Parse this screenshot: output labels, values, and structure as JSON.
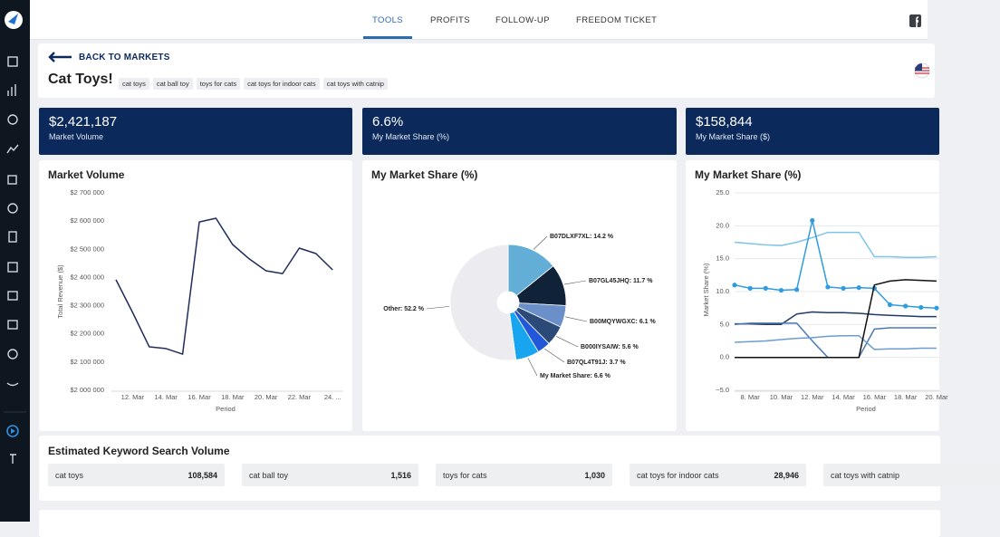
{
  "nav": {
    "tabs": [
      "TOOLS",
      "PROFITS",
      "FOLLOW-UP",
      "FREEDOM TICKET"
    ],
    "active": 0
  },
  "header": {
    "back": "BACK TO MARKETS",
    "title": "Cat Toys!",
    "tags": [
      "cat toys",
      "cat ball toy",
      "toys for cats",
      "cat toys for indoor cats",
      "cat toys with catnip"
    ]
  },
  "kpis": [
    {
      "value": "$2,421,187",
      "label": "Market Volume"
    },
    {
      "value": "6.6%",
      "label": "My Market Share (%)"
    },
    {
      "value": "$158,844",
      "label": "My Market Share ($)"
    }
  ],
  "chart_data": [
    {
      "type": "line",
      "title": "Market Volume",
      "ylabel": "Total Revenue ($)",
      "xlabel": "Period",
      "categories": [
        null,
        "12. Mar",
        null,
        "14. Mar",
        null,
        "16. Mar",
        null,
        "18. Mar",
        null,
        "20. Mar",
        null,
        "22. Mar",
        null,
        "24. ..."
      ],
      "series": [
        {
          "color": "#1f2d5c",
          "values": [
            2392000,
            2276000,
            2154000,
            2148000,
            2128000,
            2597000,
            2610000,
            2517000,
            2466000,
            2424000,
            2414000,
            2504000,
            2485000,
            2427000
          ]
        }
      ],
      "ylim": [
        2000000,
        2700000
      ],
      "yticks": [
        {
          "value": 2000000,
          "label": "$2 000 000"
        },
        {
          "value": 2100000,
          "label": "$2 100 000"
        },
        {
          "value": 2200000,
          "label": "$2 200 000"
        },
        {
          "value": 2300000,
          "label": "$2 300 000"
        },
        {
          "value": 2400000,
          "label": "$2 400 000"
        },
        {
          "value": 2500000,
          "label": "$2 500 000"
        },
        {
          "value": 2600000,
          "label": "$2 600 000"
        },
        {
          "value": 2700000,
          "label": "$2 700 000"
        }
      ],
      "grid": false
    },
    {
      "type": "pie",
      "title": "My Market Share (%)",
      "values": [
        14.2,
        11.7,
        6.1,
        5.6,
        3.7,
        6.6,
        52.2
      ],
      "value_labels": [
        "B07DLXF7XL: 14.2 %",
        "B07GL45JHQ: 11.7 %",
        "B00MQYWGXC: 6.1 %",
        "B000IYSAIW: 5.6 %",
        "B07QL4T91J: 3.7 %",
        "My Market Share: 6.6 %",
        "Other: 52.2 %"
      ],
      "colors": [
        "#63aed6",
        "#0f2238",
        "#6b8fc9",
        "#2c4a78",
        "#2157d8",
        "#16a5ee",
        "#ececf0"
      ]
    },
    {
      "type": "line",
      "title": "My Market Share (%)",
      "ylabel": "Market Share (%)",
      "xlabel": "Period",
      "categories": [
        null,
        "8. Mar",
        null,
        "10. Mar",
        null,
        "12. Mar",
        null,
        "14. Mar",
        null,
        "16. Mar",
        null,
        "18. Mar",
        null,
        "20. Mar"
      ],
      "series": [
        {
          "color": "#7ec3e8",
          "values": [
            17.5,
            17.3,
            17.1,
            17.0,
            17.5,
            18.2,
            19.0,
            19.0,
            19.0,
            15.3,
            15.3,
            15.2,
            15.2,
            15.3
          ]
        },
        {
          "color": "#2f9be0",
          "markers": true,
          "values": [
            11.0,
            10.5,
            10.5,
            10.2,
            10.3,
            20.8,
            10.7,
            10.5,
            10.6,
            10.5,
            8.0,
            7.8,
            7.6,
            7.5
          ]
        },
        {
          "color": "#1f3a66",
          "values": [
            5.1,
            5.1,
            5.0,
            5.0,
            6.6,
            6.9,
            6.8,
            6.8,
            6.7,
            6.5,
            6.4,
            6.3,
            6.2,
            6.2
          ]
        },
        {
          "color": "#4a78b5",
          "values": [
            5.0,
            5.2,
            5.2,
            5.2,
            5.2,
            2.5,
            0.0,
            0.0,
            0.0,
            4.3,
            4.5,
            4.5,
            4.5,
            4.5
          ]
        },
        {
          "color": "#6d9ccf",
          "values": [
            2.3,
            2.4,
            2.5,
            2.7,
            2.9,
            3.0,
            3.2,
            3.3,
            3.3,
            1.2,
            1.3,
            1.3,
            1.4,
            1.4
          ]
        },
        {
          "color": "#111111",
          "values": [
            0.0,
            0.0,
            0.0,
            0.0,
            0.0,
            0.0,
            0.0,
            0.0,
            0.0,
            11.0,
            11.6,
            11.8,
            11.7,
            11.6
          ]
        }
      ],
      "ylim": [
        -5,
        25
      ],
      "yticks": [
        {
          "value": -5,
          "label": "−5.0"
        },
        {
          "value": 0,
          "label": "0.0"
        },
        {
          "value": 5,
          "label": "5.0"
        },
        {
          "value": 10,
          "label": "10.0"
        },
        {
          "value": 15,
          "label": "15.0"
        },
        {
          "value": 20,
          "label": "20.0"
        },
        {
          "value": 25,
          "label": "25.0"
        }
      ],
      "grid": true
    }
  ],
  "keywords": {
    "title": "Estimated Keyword Search Volume",
    "items": [
      {
        "keyword": "cat toys",
        "volume": "108,584"
      },
      {
        "keyword": "cat ball toy",
        "volume": "1,516"
      },
      {
        "keyword": "toys for cats",
        "volume": "1,030"
      },
      {
        "keyword": "cat toys for indoor cats",
        "volume": "28,946"
      },
      {
        "keyword": "cat toys with catnip"
      }
    ]
  }
}
